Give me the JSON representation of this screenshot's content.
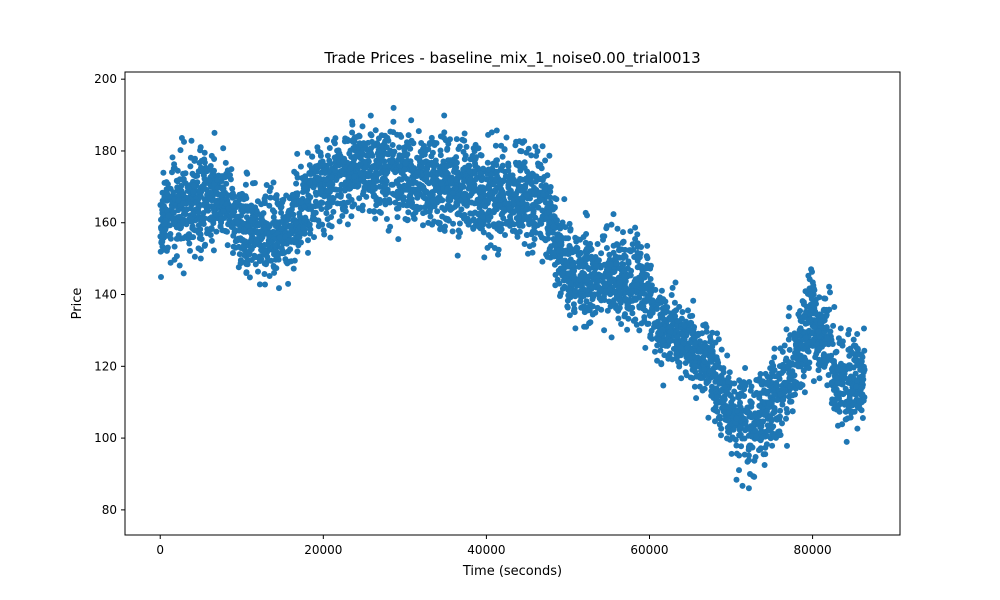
{
  "chart_data": {
    "type": "scatter",
    "title": "Trade Prices - baseline_mix_1_noise0.00_trial0013",
    "xlabel": "Time (seconds)",
    "ylabel": "Price",
    "xlim": [
      -4320,
      90720
    ],
    "ylim": [
      73,
      202
    ],
    "xticks": [
      0,
      20000,
      40000,
      60000,
      80000
    ],
    "yticks": [
      80,
      100,
      120,
      140,
      160,
      180,
      200
    ],
    "grid": false,
    "legend": "none",
    "series": [
      {
        "color": "#1f77b4",
        "x_range": [
          0,
          86400
        ],
        "center_trend": [
          [
            0,
            160
          ],
          [
            2000,
            163
          ],
          [
            4000,
            165
          ],
          [
            6000,
            167
          ],
          [
            8000,
            165
          ],
          [
            10000,
            158
          ],
          [
            12000,
            157
          ],
          [
            14000,
            156
          ],
          [
            16000,
            158
          ],
          [
            18000,
            168
          ],
          [
            20000,
            171
          ],
          [
            24000,
            174
          ],
          [
            28000,
            175
          ],
          [
            32000,
            172
          ],
          [
            36000,
            170
          ],
          [
            40000,
            168
          ],
          [
            44000,
            167
          ],
          [
            47000,
            166
          ],
          [
            50000,
            146
          ],
          [
            53000,
            145
          ],
          [
            56000,
            145
          ],
          [
            59000,
            144
          ],
          [
            61000,
            132
          ],
          [
            64000,
            128
          ],
          [
            67000,
            121
          ],
          [
            70000,
            108
          ],
          [
            72000,
            104
          ],
          [
            75000,
            108
          ],
          [
            77000,
            118
          ],
          [
            80000,
            132
          ],
          [
            82000,
            127
          ],
          [
            83000,
            114
          ],
          [
            85000,
            117
          ],
          [
            86400,
            118
          ]
        ],
        "spread": [
          [
            0,
            16
          ],
          [
            6000,
            16
          ],
          [
            9000,
            14
          ],
          [
            16000,
            14
          ],
          [
            18000,
            14
          ],
          [
            30000,
            15
          ],
          [
            46000,
            15
          ],
          [
            50000,
            15
          ],
          [
            60000,
            14
          ],
          [
            66000,
            12
          ],
          [
            72000,
            15
          ],
          [
            80000,
            15
          ],
          [
            86400,
            14
          ]
        ],
        "observed_min": 79,
        "observed_max": 198
      }
    ]
  }
}
